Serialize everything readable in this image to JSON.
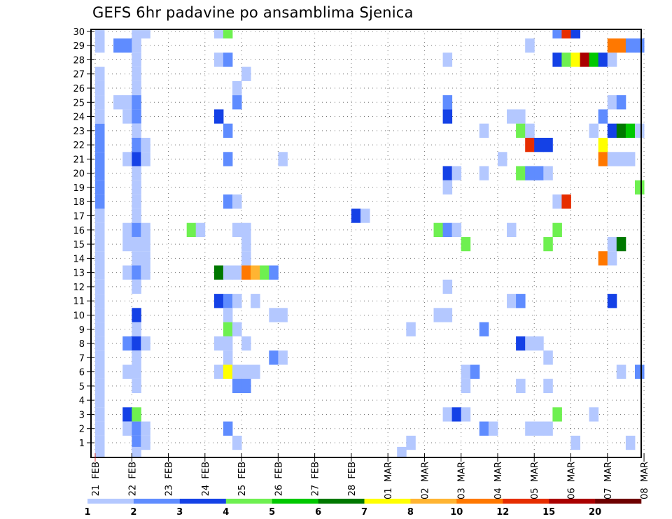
{
  "chart_data": {
    "type": "heatmap",
    "title": "GEFS 6hr padavine po ansamblima Sjenica",
    "xlabel": "",
    "ylabel": "",
    "x_ticks": [
      "21 FEB",
      "22 FEB",
      "23 FEB",
      "24 FEB",
      "25 FEB",
      "26 FEB",
      "27 FEB",
      "28 FEB",
      "01 MAR",
      "02 MAR",
      "03 MAR",
      "04 MAR",
      "05 MAR",
      "06 MAR",
      "07 MAR",
      "08 MAR"
    ],
    "x_step": "6h",
    "y_ticks": [
      "1",
      "2",
      "3",
      "4",
      "5",
      "6",
      "7",
      "8",
      "9",
      "10",
      "11",
      "12",
      "13",
      "14",
      "15",
      "16",
      "17",
      "18",
      "19",
      "20",
      "21",
      "22",
      "23",
      "24",
      "25",
      "26",
      "27",
      "28",
      "29",
      "30"
    ],
    "ylim": [
      0,
      30
    ],
    "grid": true,
    "legend": {
      "placement": "bottom",
      "labels": [
        "1",
        "2",
        "3",
        "4",
        "5",
        "6",
        "7",
        "8",
        "10",
        "12",
        "15",
        "20"
      ],
      "colors": [
        "#b4c8ff",
        "#5f8cff",
        "#1441e6",
        "#6ef050",
        "#00c800",
        "#007800",
        "#ffff00",
        "#ffb432",
        "#ff7800",
        "#e62d00",
        "#aa0000",
        "#6e0000"
      ]
    },
    "bin_note": "cell value = precipitation bin index 0..11 (0 = 1-2 mm, 11 = >=20 mm); col = 6-hour step from 21 FEB 00z",
    "cells": [
      [
        0,
        0,
        0
      ],
      [
        0,
        1,
        0
      ],
      [
        0,
        2,
        0
      ],
      [
        0,
        3,
        0
      ],
      [
        0,
        4,
        0
      ],
      [
        0,
        5,
        0
      ],
      [
        0,
        6,
        0
      ],
      [
        0,
        7,
        0
      ],
      [
        0,
        8,
        0
      ],
      [
        0,
        9,
        0
      ],
      [
        0,
        10,
        0
      ],
      [
        0,
        11,
        0
      ],
      [
        0,
        12,
        0
      ],
      [
        0,
        13,
        0
      ],
      [
        0,
        14,
        0
      ],
      [
        0,
        15,
        0
      ],
      [
        0,
        16,
        0
      ],
      [
        0,
        17,
        0
      ],
      [
        0,
        18,
        1
      ],
      [
        0,
        19,
        1
      ],
      [
        0,
        20,
        1
      ],
      [
        0,
        21,
        1
      ],
      [
        0,
        22,
        1
      ],
      [
        0,
        23,
        1
      ],
      [
        0,
        24,
        0
      ],
      [
        0,
        25,
        0
      ],
      [
        0,
        26,
        0
      ],
      [
        0,
        27,
        0
      ],
      [
        0,
        29,
        0
      ],
      [
        0,
        30,
        0
      ],
      [
        3,
        29,
        1
      ],
      [
        3,
        25,
        0
      ],
      [
        3,
        24,
        0
      ],
      [
        3,
        21,
        0
      ],
      [
        3,
        16,
        0
      ],
      [
        3,
        15,
        0
      ],
      [
        3,
        13,
        0
      ],
      [
        3,
        8,
        1
      ],
      [
        3,
        6,
        0
      ],
      [
        3,
        3,
        2
      ],
      [
        3,
        2,
        0
      ],
      [
        2,
        29,
        1
      ],
      [
        2,
        25,
        0
      ],
      [
        4,
        30,
        0
      ],
      [
        4,
        29,
        0
      ],
      [
        4,
        28,
        0
      ],
      [
        4,
        27,
        0
      ],
      [
        4,
        26,
        0
      ],
      [
        4,
        25,
        1
      ],
      [
        4,
        24,
        1
      ],
      [
        4,
        23,
        0
      ],
      [
        4,
        22,
        1
      ],
      [
        4,
        21,
        2
      ],
      [
        4,
        20,
        0
      ],
      [
        4,
        19,
        0
      ],
      [
        4,
        18,
        0
      ],
      [
        4,
        17,
        0
      ],
      [
        4,
        16,
        1
      ],
      [
        4,
        15,
        0
      ],
      [
        4,
        14,
        0
      ],
      [
        4,
        13,
        1
      ],
      [
        4,
        12,
        0
      ],
      [
        4,
        10,
        2
      ],
      [
        4,
        9,
        0
      ],
      [
        4,
        8,
        2
      ],
      [
        4,
        7,
        0
      ],
      [
        4,
        6,
        0
      ],
      [
        4,
        5,
        0
      ],
      [
        4,
        3,
        3
      ],
      [
        4,
        2,
        1
      ],
      [
        4,
        1,
        1
      ],
      [
        4,
        0,
        0
      ],
      [
        5,
        30,
        0
      ],
      [
        5,
        22,
        0
      ],
      [
        5,
        21,
        0
      ],
      [
        5,
        16,
        0
      ],
      [
        5,
        15,
        0
      ],
      [
        5,
        14,
        0
      ],
      [
        5,
        13,
        0
      ],
      [
        5,
        8,
        0
      ],
      [
        5,
        2,
        0
      ],
      [
        5,
        1,
        0
      ],
      [
        10,
        16,
        3
      ],
      [
        11,
        16,
        0
      ],
      [
        13,
        30,
        0
      ],
      [
        14,
        30,
        3
      ],
      [
        13,
        28,
        0
      ],
      [
        14,
        28,
        1
      ],
      [
        13,
        24,
        2
      ],
      [
        14,
        23,
        1
      ],
      [
        14,
        21,
        1
      ],
      [
        13,
        13,
        5
      ],
      [
        14,
        13,
        0
      ],
      [
        15,
        13,
        0
      ],
      [
        16,
        13,
        8
      ],
      [
        17,
        13,
        7
      ],
      [
        18,
        13,
        3
      ],
      [
        19,
        13,
        1
      ],
      [
        16,
        27,
        0
      ],
      [
        15,
        26,
        0
      ],
      [
        15,
        25,
        1
      ],
      [
        14,
        18,
        1
      ],
      [
        15,
        18,
        0
      ],
      [
        15,
        16,
        0
      ],
      [
        16,
        16,
        0
      ],
      [
        16,
        15,
        0
      ],
      [
        16,
        14,
        0
      ],
      [
        13,
        11,
        2
      ],
      [
        14,
        11,
        1
      ],
      [
        15,
        11,
        0
      ],
      [
        17,
        11,
        0
      ],
      [
        14,
        10,
        0
      ],
      [
        14,
        9,
        3
      ],
      [
        15,
        9,
        0
      ],
      [
        13,
        8,
        0
      ],
      [
        14,
        8,
        0
      ],
      [
        16,
        8,
        0
      ],
      [
        14,
        7,
        0
      ],
      [
        13,
        6,
        0
      ],
      [
        14,
        6,
        6
      ],
      [
        15,
        6,
        0
      ],
      [
        16,
        6,
        0
      ],
      [
        17,
        6,
        0
      ],
      [
        15,
        5,
        1
      ],
      [
        16,
        5,
        1
      ],
      [
        14,
        2,
        1
      ],
      [
        15,
        1,
        0
      ],
      [
        20,
        21,
        0
      ],
      [
        19,
        10,
        0
      ],
      [
        20,
        10,
        0
      ],
      [
        19,
        7,
        1
      ],
      [
        20,
        7,
        0
      ],
      [
        28,
        17,
        2
      ],
      [
        29,
        17,
        0
      ],
      [
        34,
        1,
        0
      ],
      [
        33,
        0,
        0
      ],
      [
        34,
        9,
        0
      ],
      [
        37,
        16,
        3
      ],
      [
        38,
        16,
        1
      ],
      [
        39,
        16,
        0
      ],
      [
        38,
        28,
        0
      ],
      [
        38,
        25,
        1
      ],
      [
        38,
        24,
        2
      ],
      [
        38,
        20,
        2
      ],
      [
        39,
        20,
        0
      ],
      [
        38,
        19,
        0
      ],
      [
        38,
        12,
        0
      ],
      [
        37,
        10,
        0
      ],
      [
        38,
        10,
        0
      ],
      [
        38,
        3,
        0
      ],
      [
        39,
        3,
        2
      ],
      [
        40,
        3,
        0
      ],
      [
        40,
        15,
        3
      ],
      [
        40,
        6,
        0
      ],
      [
        41,
        6,
        1
      ],
      [
        40,
        5,
        0
      ],
      [
        42,
        9,
        1
      ],
      [
        42,
        20,
        0
      ],
      [
        42,
        23,
        0
      ],
      [
        44,
        21,
        0
      ],
      [
        42,
        2,
        1
      ],
      [
        43,
        2,
        0
      ],
      [
        45,
        16,
        0
      ],
      [
        45,
        24,
        0
      ],
      [
        46,
        24,
        0
      ],
      [
        45,
        11,
        0
      ],
      [
        46,
        11,
        1
      ],
      [
        46,
        8,
        2
      ],
      [
        47,
        8,
        0
      ],
      [
        48,
        8,
        0
      ],
      [
        46,
        5,
        0
      ],
      [
        46,
        23,
        3
      ],
      [
        47,
        23,
        0
      ],
      [
        46,
        20,
        3
      ],
      [
        47,
        20,
        1
      ],
      [
        48,
        20,
        1
      ],
      [
        49,
        20,
        0
      ],
      [
        47,
        29,
        0
      ],
      [
        47,
        22,
        9
      ],
      [
        48,
        22,
        2
      ],
      [
        49,
        22,
        2
      ],
      [
        47,
        2,
        0
      ],
      [
        48,
        2,
        0
      ],
      [
        49,
        2,
        0
      ],
      [
        49,
        15,
        3
      ],
      [
        49,
        7,
        0
      ],
      [
        49,
        5,
        0
      ],
      [
        50,
        3,
        3
      ],
      [
        50,
        30,
        1
      ],
      [
        51,
        30,
        9
      ],
      [
        52,
        30,
        2
      ],
      [
        50,
        28,
        2
      ],
      [
        51,
        28,
        3
      ],
      [
        52,
        28,
        6
      ],
      [
        53,
        28,
        10
      ],
      [
        54,
        28,
        4
      ],
      [
        55,
        28,
        2
      ],
      [
        56,
        28,
        0
      ],
      [
        50,
        18,
        0
      ],
      [
        51,
        18,
        9
      ],
      [
        50,
        16,
        3
      ],
      [
        52,
        1,
        0
      ],
      [
        54,
        3,
        0
      ],
      [
        54,
        23,
        0
      ],
      [
        55,
        24,
        1
      ],
      [
        56,
        23,
        2
      ],
      [
        57,
        23,
        5
      ],
      [
        58,
        23,
        4
      ],
      [
        59,
        23,
        0
      ],
      [
        55,
        22,
        6
      ],
      [
        55,
        21,
        8
      ],
      [
        56,
        21,
        0
      ],
      [
        57,
        21,
        0
      ],
      [
        58,
        21,
        0
      ],
      [
        56,
        29,
        8
      ],
      [
        57,
        29,
        8
      ],
      [
        58,
        29,
        1
      ],
      [
        59,
        29,
        1
      ],
      [
        56,
        25,
        0
      ],
      [
        57,
        25,
        1
      ],
      [
        55,
        14,
        8
      ],
      [
        56,
        14,
        0
      ],
      [
        56,
        15,
        0
      ],
      [
        57,
        15,
        5
      ],
      [
        56,
        11,
        2
      ],
      [
        57,
        6,
        0
      ],
      [
        59,
        6,
        1
      ],
      [
        58,
        1,
        0
      ],
      [
        59,
        19,
        3
      ]
    ]
  }
}
